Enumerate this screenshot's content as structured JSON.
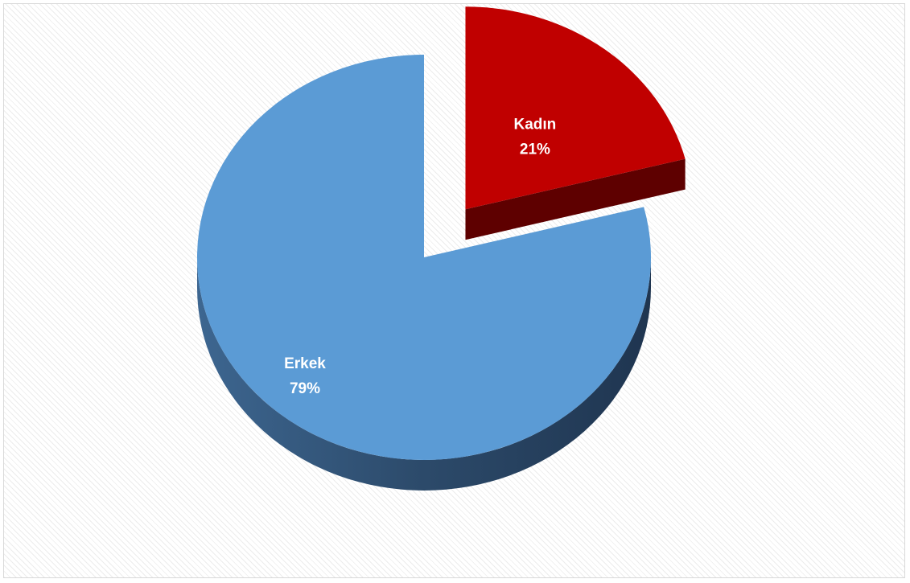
{
  "chart_data": {
    "type": "pie",
    "title": "",
    "three_d": true,
    "exploded": [
      "Kadın"
    ],
    "slices": [
      {
        "label": "Kadın",
        "value": 21,
        "value_label": "21%",
        "color": "#c00000",
        "side_color": "#6e0000"
      },
      {
        "label": "Erkek",
        "value": 79,
        "value_label": "79%",
        "color": "#5b9bd5",
        "side_color": "#2e4c6b"
      }
    ],
    "legend": "none",
    "grid": false
  }
}
